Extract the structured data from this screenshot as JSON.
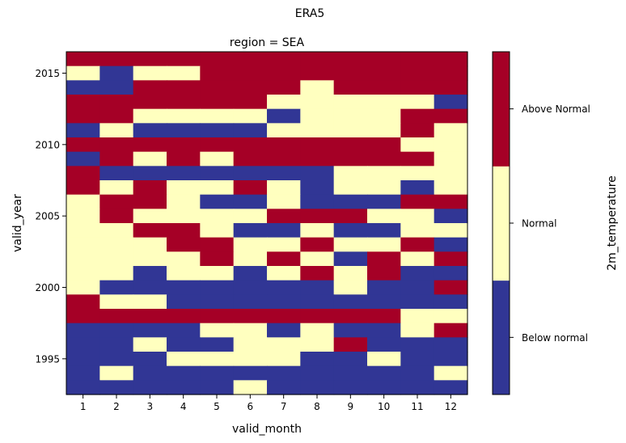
{
  "chart_data": {
    "type": "heatmap",
    "suptitle": "ERA5",
    "title": "region = SEA",
    "xlabel": "valid_month",
    "ylabel": "valid_year",
    "colorbar_label": "2m_temperature",
    "x": [
      1,
      2,
      3,
      4,
      5,
      6,
      7,
      8,
      9,
      10,
      11,
      12
    ],
    "y_range": [
      1993,
      2016
    ],
    "y_ticks": [
      1995,
      2000,
      2005,
      2010,
      2015
    ],
    "categories": [
      "Below normal",
      "Normal",
      "Above Normal"
    ],
    "colors": {
      "Below normal": "#313695",
      "Normal": "#ffffbf",
      "Above Normal": "#a50026"
    },
    "category_codes": {
      "B": "Below normal",
      "N": "Normal",
      "A": "Above Normal"
    },
    "rows_top_to_bottom": [
      {
        "year": 2016,
        "values": "AAAAAAAAAAAA"
      },
      {
        "year": 2015,
        "values": "NBNNAAAAAAAA"
      },
      {
        "year": 2014,
        "values": "BBAAAAANAAAA"
      },
      {
        "year": 2013,
        "values": "AAAAAANNNNNB"
      },
      {
        "year": 2012,
        "values": "AANNNNBNNNAA"
      },
      {
        "year": 2011,
        "values": "BNBBBBNNNNAN"
      },
      {
        "year": 2010,
        "values": "AAAAAAAAAANN"
      },
      {
        "year": 2009,
        "values": "BANANAAAAAAN"
      },
      {
        "year": 2008,
        "values": "ABBBBBBBNNNN"
      },
      {
        "year": 2007,
        "values": "ANANNANBNNBN"
      },
      {
        "year": 2006,
        "values": "NAANBBNBBBAA"
      },
      {
        "year": 2005,
        "values": "NANNNNAAANNB"
      },
      {
        "year": 2004,
        "values": "NNAANBBNBBNN"
      },
      {
        "year": 2003,
        "values": "NNNAANNANNAB"
      },
      {
        "year": 2002,
        "values": "NNNNANANBANA"
      },
      {
        "year": 2001,
        "values": "NNBNNBNANABB"
      },
      {
        "year": 2000,
        "values": "NBBBBBBBNBBA"
      },
      {
        "year": 1999,
        "values": "ANNBBBBBBBBB"
      },
      {
        "year": 1998,
        "values": "AAAAAAAAAANN"
      },
      {
        "year": 1997,
        "values": "BBBBNNBNBBNA"
      },
      {
        "year": 1996,
        "values": "BBNBBNNNABBB"
      },
      {
        "year": 1995,
        "values": "BBBNNNNBBNBB"
      },
      {
        "year": 1994,
        "values": "BNBBBBBBBBBN"
      },
      {
        "year": 1993,
        "values": "BBBBBNBBBBBB"
      }
    ]
  }
}
